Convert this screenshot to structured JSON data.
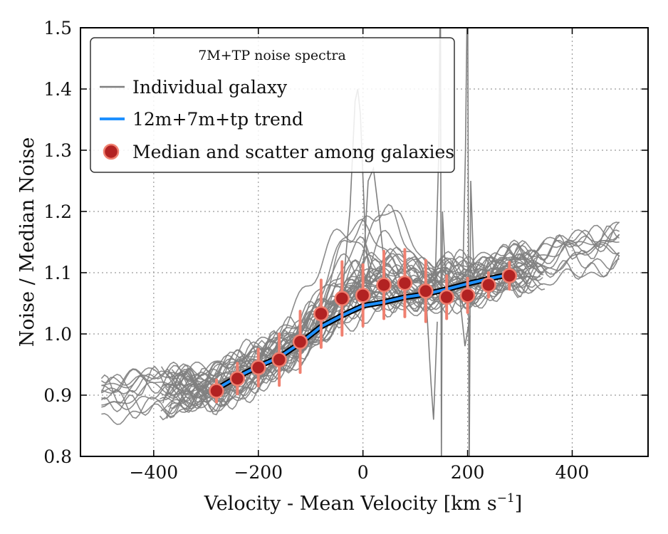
{
  "chart_data": {
    "type": "line",
    "xlabel": "Velocity - Mean Velocity [km s",
    "xlabel_sup": "−1",
    "xlabel_end": "]",
    "ylabel": "Noise / Median Noise",
    "xlim": [
      -540,
      545
    ],
    "ylim": [
      0.8,
      1.5
    ],
    "xticks": [
      -400,
      -200,
      0,
      200,
      400
    ],
    "xtick_labels": [
      "−400",
      "−200",
      "0",
      "200",
      "400"
    ],
    "yticks": [
      0.8,
      0.9,
      1.0,
      1.1,
      1.2,
      1.3,
      1.4,
      1.5
    ],
    "ytick_labels": [
      "0.8",
      "0.9",
      "1.0",
      "1.1",
      "1.2",
      "1.3",
      "1.4",
      "1.5"
    ],
    "grid": true,
    "legend": {
      "title": "7M+TP noise spectra",
      "placement": "top-left",
      "entries": [
        {
          "label": "Individual galaxy",
          "kind": "line",
          "color": "#7f7f7f"
        },
        {
          "label": "12m+7m+tp trend",
          "kind": "line",
          "color": "#1e90ff"
        },
        {
          "label": "Median and scatter among galaxies",
          "kind": "marker",
          "color": "#b22222"
        }
      ]
    },
    "trend": {
      "name": "12m+7m+tp trend",
      "x": [
        -280,
        -240,
        -200,
        -160,
        -120,
        -80,
        -40,
        0,
        40,
        80,
        120,
        160,
        200,
        240,
        280
      ],
      "y": [
        0.91,
        0.93,
        0.947,
        0.962,
        0.985,
        1.012,
        1.03,
        1.046,
        1.052,
        1.06,
        1.065,
        1.073,
        1.082,
        1.09,
        1.097
      ]
    },
    "median_scatter": {
      "name": "Median and scatter among galaxies",
      "x": [
        -280,
        -240,
        -200,
        -160,
        -120,
        -80,
        -40,
        0,
        40,
        80,
        120,
        160,
        200,
        240,
        280
      ],
      "y": [
        0.907,
        0.927,
        0.945,
        0.958,
        0.987,
        1.033,
        1.058,
        1.063,
        1.08,
        1.083,
        1.07,
        1.06,
        1.063,
        1.08,
        1.095
      ],
      "err": [
        0.018,
        0.025,
        0.03,
        0.042,
        0.05,
        0.055,
        0.06,
        0.05,
        0.055,
        0.055,
        0.05,
        0.035,
        0.028,
        0.02,
        0.022
      ]
    },
    "individual_spectra": {
      "name": "Individual galaxy",
      "count": 40,
      "x_range": [
        -500,
        500
      ],
      "notes": "gray noise curves; spikes near 0, 150 and 200 km/s"
    },
    "colors": {
      "individual": "#7f7f7f",
      "trend": "#1e90ff",
      "trend_outline": "#000000",
      "marker_fill": "#b22222",
      "marker_edge": "#f08070",
      "errorbar": "#f08070",
      "grid": "#9a9a9a"
    }
  }
}
